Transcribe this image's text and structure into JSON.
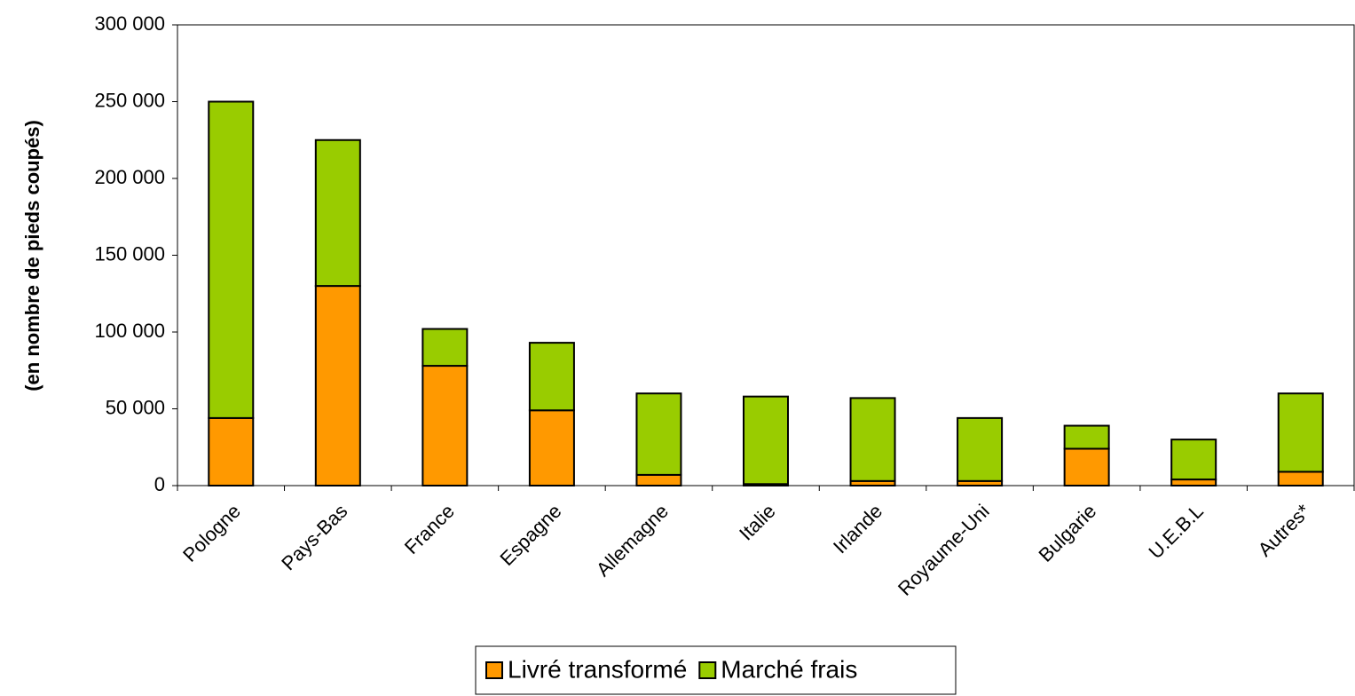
{
  "chart_data": {
    "type": "stacked_bar",
    "y_label": "(en nombre de pieds coupés)",
    "categories": [
      "Pologne",
      "Pays-Bas",
      "France",
      "Espagne",
      "Allemagne",
      "Italie",
      "Irlande",
      "Royaume-Uni",
      "Bulgarie",
      "U.E.B.L",
      "Autres*"
    ],
    "series": [
      {
        "name": "Livré transformé",
        "color": "#ff9900",
        "values": [
          44000,
          130000,
          78000,
          49000,
          7000,
          1000,
          3000,
          3000,
          24000,
          4000,
          9000
        ]
      },
      {
        "name": "Marché frais",
        "color": "#99cc00",
        "values": [
          206000,
          95000,
          24000,
          44000,
          53000,
          57000,
          54000,
          41000,
          15000,
          26000,
          51000
        ]
      }
    ],
    "ylim": [
      0,
      300000
    ],
    "yticks": [
      {
        "value": 0,
        "label": "0"
      },
      {
        "value": 50000,
        "label": "50 000"
      },
      {
        "value": 100000,
        "label": "100 000"
      },
      {
        "value": 150000,
        "label": "150 000"
      },
      {
        "value": 200000,
        "label": "200 000"
      },
      {
        "value": 250000,
        "label": "250 000"
      },
      {
        "value": 300000,
        "label": "300 000"
      }
    ],
    "legend": "bottom"
  }
}
